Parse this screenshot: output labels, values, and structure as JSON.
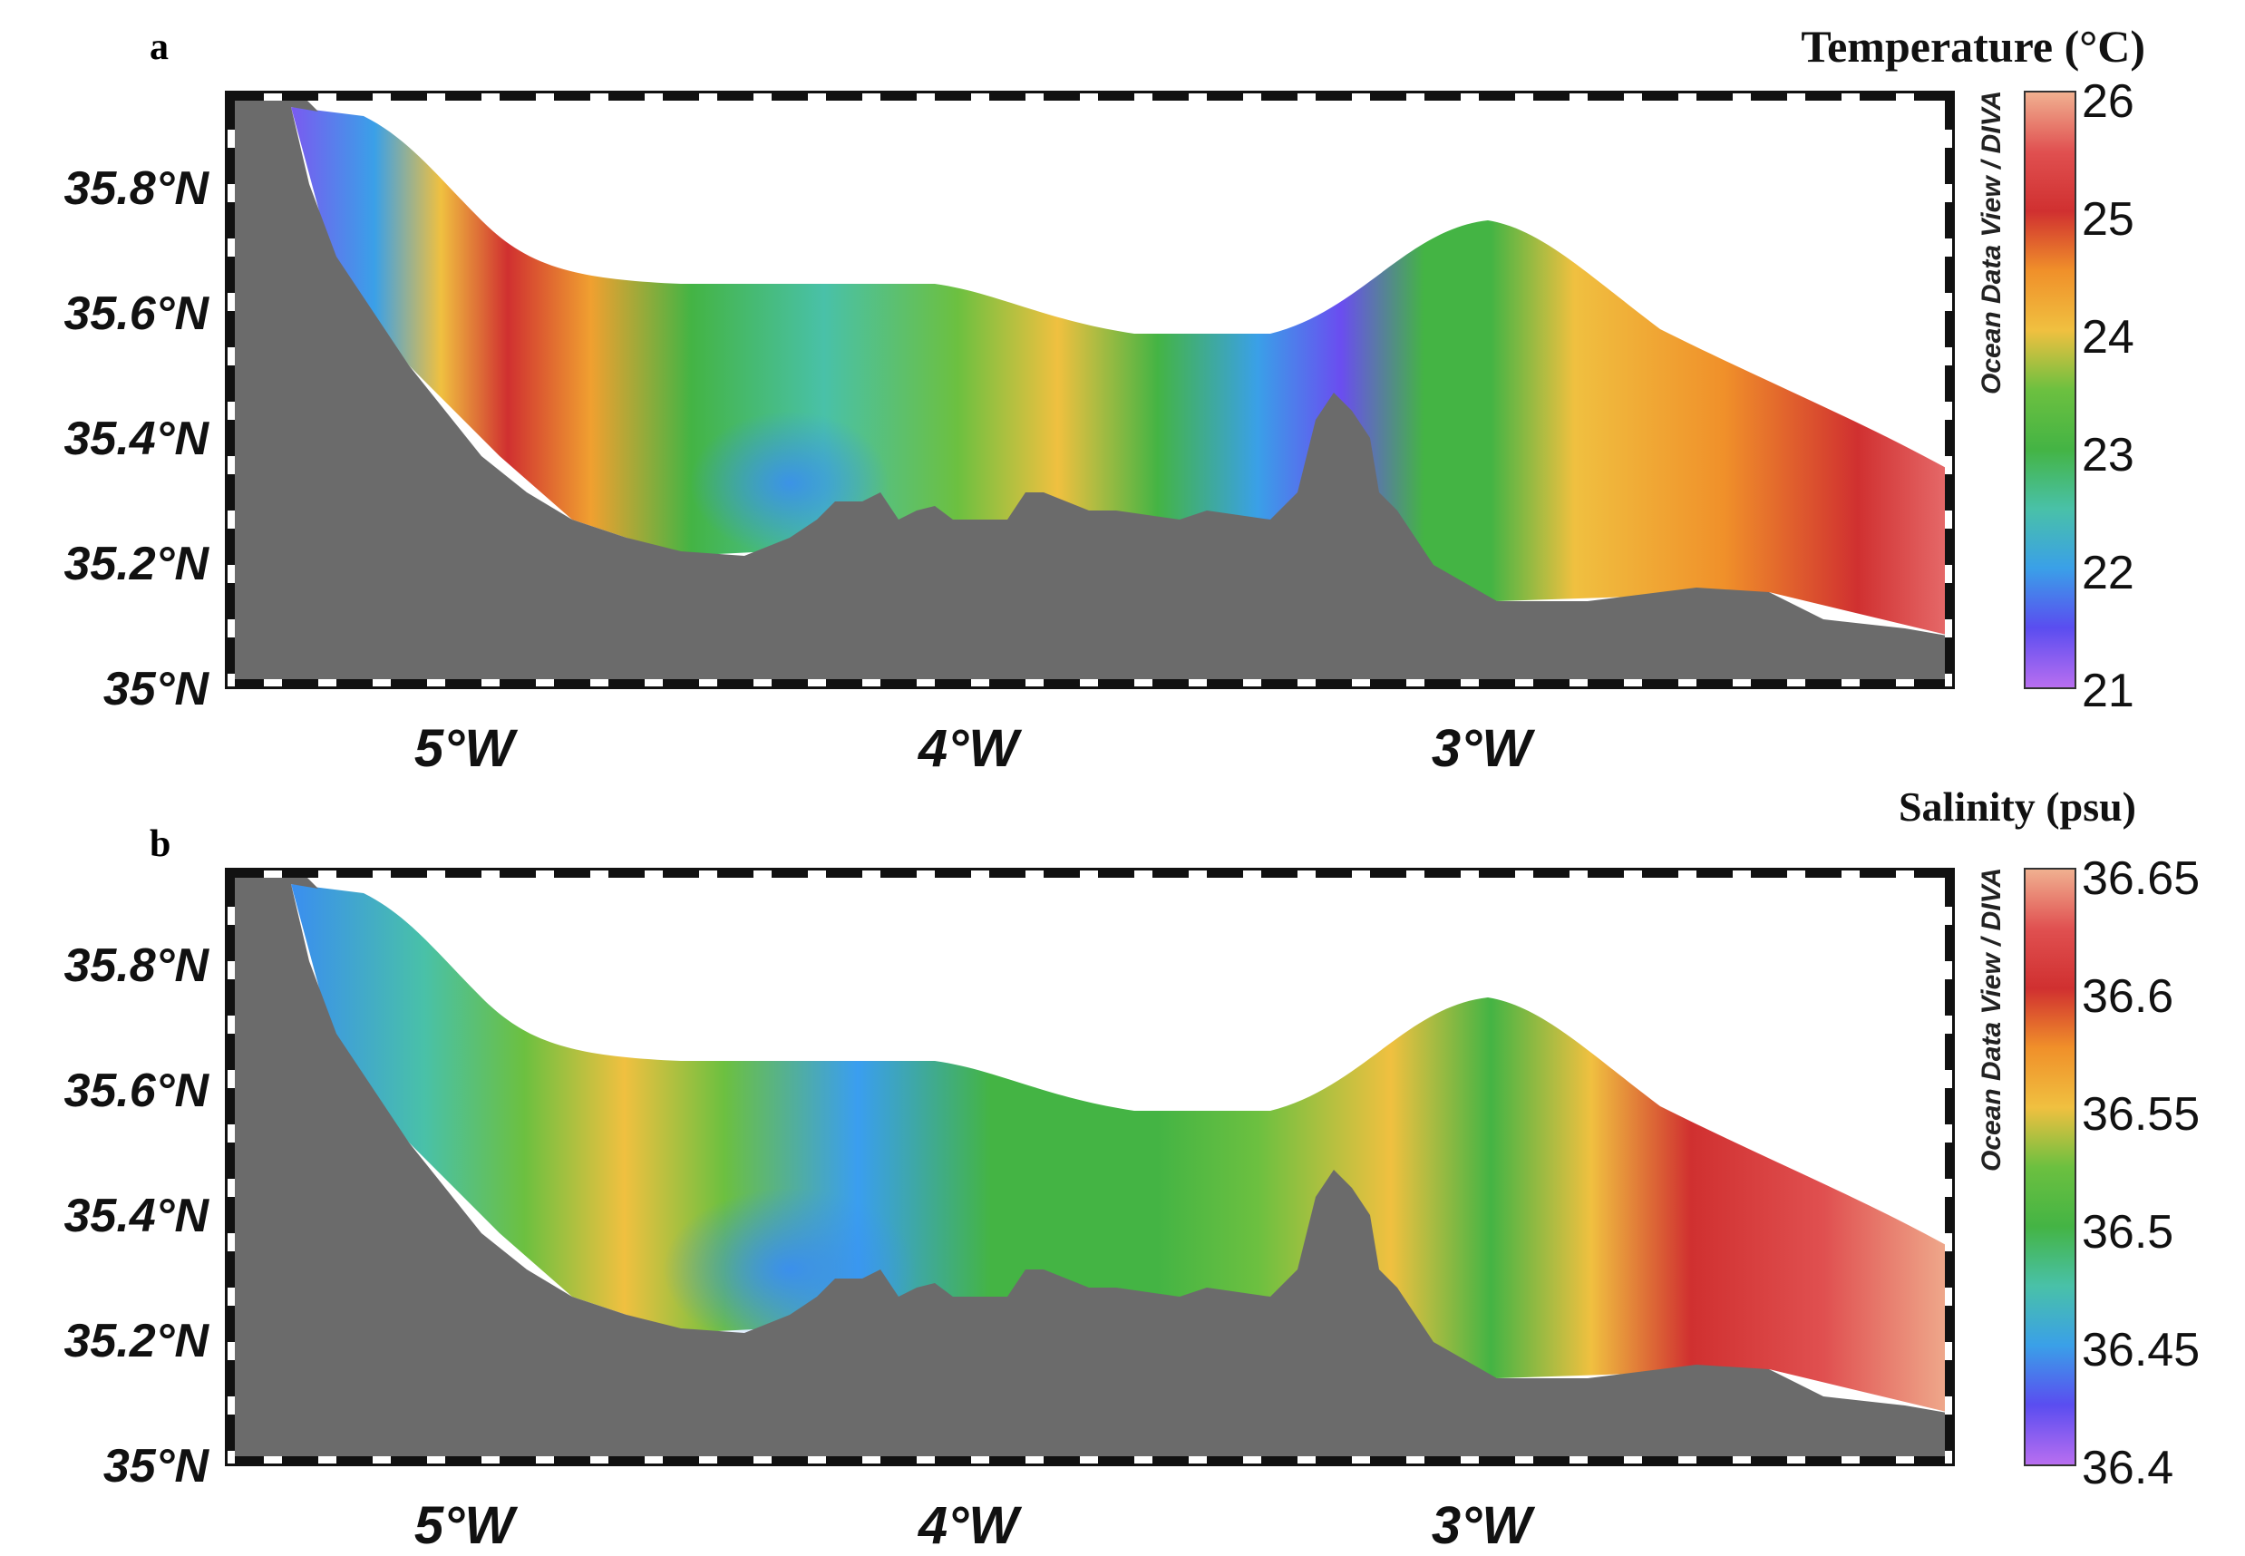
{
  "panels": [
    {
      "letter": "a",
      "title": "Temperature (°C)",
      "colorbar": {
        "ticks": [
          "26",
          "25",
          "24",
          "23",
          "22",
          "21"
        ],
        "min": 21,
        "max": 26,
        "colors": [
          "#b86ef0",
          "#5a4df0",
          "#3aa0e8",
          "#49c1a8",
          "#44b444",
          "#6cc040",
          "#f0c040",
          "#f0902a",
          "#d03030",
          "#e05050",
          "#f0b090"
        ]
      },
      "watermark": "Ocean Data View / DIVA",
      "lat_labels": [
        "35.8°N",
        "35.6°N",
        "35.4°N",
        "35.2°N",
        "35°N"
      ],
      "lon_labels": [
        "5°W",
        "4°W",
        "3°W"
      ]
    },
    {
      "letter": "b",
      "title": "Salinity (psu)",
      "colorbar": {
        "ticks": [
          "36.65",
          "36.6",
          "36.55",
          "36.5",
          "36.45",
          "36.4"
        ],
        "min": 36.4,
        "max": 36.65,
        "colors": [
          "#b86ef0",
          "#5a4df0",
          "#3aa0e8",
          "#49c1a8",
          "#44b444",
          "#6cc040",
          "#f0c040",
          "#f0902a",
          "#d03030",
          "#e05050",
          "#f0b090"
        ]
      },
      "watermark": "Ocean Data View / DIVA",
      "lat_labels": [
        "35.8°N",
        "35.6°N",
        "35.4°N",
        "35.2°N",
        "35°N"
      ],
      "lon_labels": [
        "5°W",
        "4°W",
        "3°W"
      ]
    }
  ],
  "land_color": "#6b6b6b"
}
